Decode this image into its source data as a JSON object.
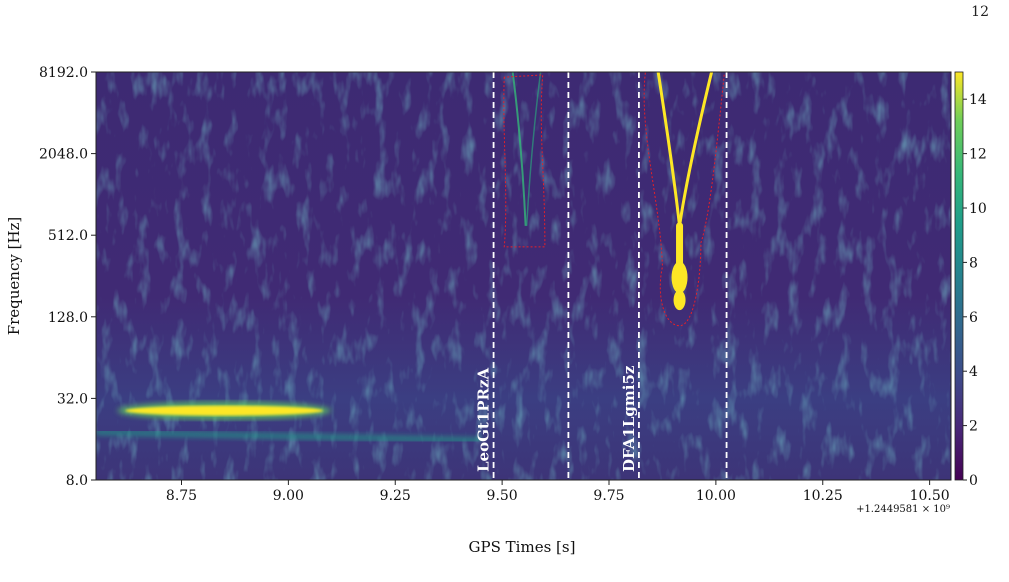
{
  "page": {
    "number": "12"
  },
  "caption": {
    "label": "(",
    "rest": ""
  },
  "chart_data": {
    "type": "heatmap",
    "kind": "q-transform spectrogram",
    "title": "",
    "xlabel": "GPS Times [s]",
    "ylabel": "Frequency [Hz]",
    "x_offset_label": "+1.2449581 × 10⁹",
    "xlim": [
      8.55,
      10.55
    ],
    "ylim": [
      8,
      8192
    ],
    "yscale": "log2",
    "x_ticks": [
      8.75,
      9.0,
      9.25,
      9.5,
      9.75,
      10.0,
      10.25,
      10.5
    ],
    "x_tick_labels": [
      "8.75",
      "9.00",
      "9.25",
      "9.50",
      "9.75",
      "10.00",
      "10.25",
      "10.50"
    ],
    "y_ticks": [
      8,
      32,
      128,
      512,
      2048,
      8192
    ],
    "y_tick_labels": [
      "8.0",
      "32.0",
      "128.0",
      "512.0",
      "2048.0",
      "8192.0"
    ],
    "colorbar": {
      "min": 0,
      "max": 15,
      "ticks": [
        0,
        2,
        4,
        6,
        8,
        10,
        12,
        14
      ],
      "tick_labels": [
        "0",
        "2",
        "4",
        "6",
        "8",
        "10",
        "12",
        "14"
      ],
      "colormap": "viridis"
    },
    "annotations": [
      {
        "label": "LeoGt1PRzA",
        "window": [
          9.48,
          9.655
        ],
        "line_color": "#ffffff",
        "line_style": "dashed"
      },
      {
        "label": "DFA1Lgmi5z",
        "window": [
          9.82,
          10.025
        ],
        "line_color": "#ffffff",
        "line_style": "dashed"
      }
    ],
    "features": [
      {
        "name": "low-frequency band",
        "x": [
          8.6,
          9.1
        ],
        "frequency_hz": 26,
        "value": 15
      },
      {
        "name": "chirp LeoGt1PRzA",
        "x": [
          9.52,
          9.59
        ],
        "frequency_hz": [
          600,
          8192
        ],
        "value": 10
      },
      {
        "name": "chirp DFA1Lgmi5z",
        "x": [
          9.85,
          10.0
        ],
        "frequency_hz": [
          150,
          8192
        ],
        "value": 15
      }
    ]
  }
}
